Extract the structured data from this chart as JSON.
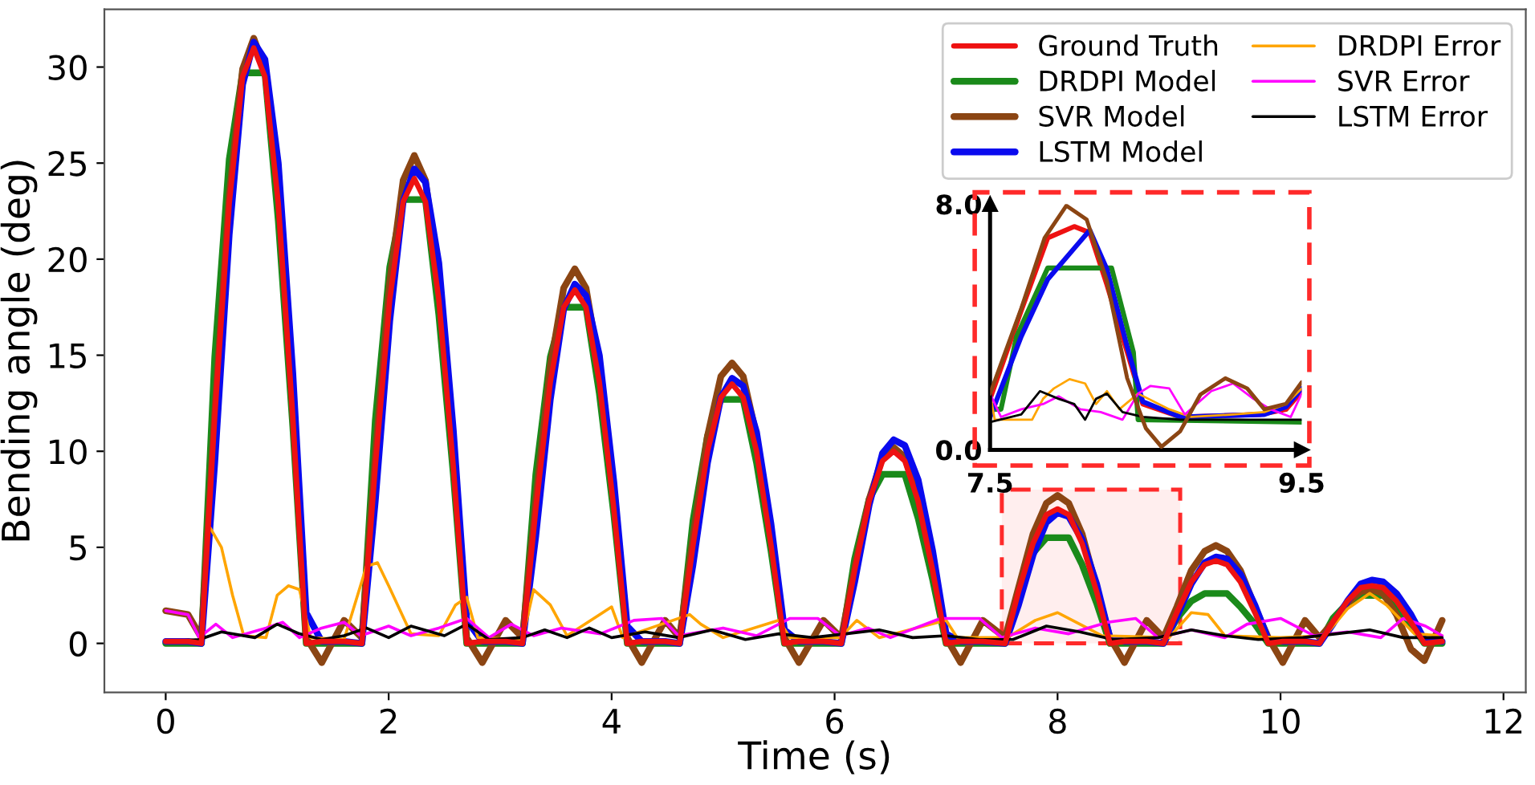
{
  "chart_data": [
    {
      "type": "line",
      "xlabel": "Time (s)",
      "ylabel": "Bending angle (deg)",
      "xlim": [
        -0.55,
        12.2
      ],
      "ylim": [
        -2.55,
        33
      ],
      "xticks": [
        0,
        2,
        4,
        6,
        8,
        10,
        12
      ],
      "yticks": [
        0,
        5,
        10,
        15,
        20,
        25,
        30
      ],
      "grid": false,
      "legend": "top right",
      "bands": [
        {
          "axis": "x",
          "from": 7.5,
          "to": 9.1,
          "color": "#ff2a2a"
        }
      ],
      "x": [
        0,
        0.2,
        0.32,
        0.44,
        0.57,
        0.69,
        0.79,
        0.89,
        1.01,
        1.14,
        1.26,
        1.4,
        1.6,
        1.76,
        1.88,
        2.01,
        2.13,
        2.23,
        2.33,
        2.45,
        2.58,
        2.7,
        2.84,
        3.05,
        3.2,
        3.32,
        3.45,
        3.57,
        3.67,
        3.77,
        3.89,
        4.02,
        4.14,
        4.27,
        4.48,
        4.61,
        4.73,
        4.86,
        4.98,
        5.08,
        5.18,
        5.3,
        5.43,
        5.55,
        5.68,
        5.9,
        6.06,
        6.18,
        6.31,
        6.43,
        6.53,
        6.63,
        6.75,
        6.88,
        7.0,
        7.13,
        7.33,
        7.53,
        7.65,
        7.78,
        7.9,
        8.0,
        8.1,
        8.22,
        8.35,
        8.47,
        8.6,
        8.8,
        8.95,
        9.07,
        9.2,
        9.32,
        9.42,
        9.52,
        9.64,
        9.77,
        9.89,
        10.02,
        10.22,
        10.35,
        10.47,
        10.6,
        10.72,
        10.82,
        10.92,
        11.04,
        11.17,
        11.29,
        11.45
      ],
      "series": [
        {
          "name": "Ground Truth",
          "color": "#ee1111",
          "values": [
            0.1,
            0.1,
            0,
            11.8,
            22.9,
            29.5,
            31,
            29.5,
            22.9,
            11.8,
            0,
            0.1,
            0.1,
            0,
            9.2,
            17.9,
            23.0,
            24.2,
            23.0,
            17.9,
            9.2,
            0,
            0.1,
            0.1,
            0,
            7.0,
            13.6,
            17.5,
            18.4,
            17.5,
            13.6,
            7.0,
            0,
            0.1,
            0.1,
            0,
            5.1,
            10.0,
            12.8,
            13.5,
            12.8,
            10.0,
            5.1,
            0,
            0.1,
            0.1,
            0,
            3.8,
            7.4,
            9.5,
            10,
            9.5,
            7.4,
            3.8,
            0,
            0.1,
            0.1,
            0,
            2.7,
            5.2,
            6.7,
            7,
            6.7,
            5.2,
            2.7,
            0,
            0.1,
            0.1,
            0,
            1.6,
            3.2,
            4.1,
            4.3,
            4.1,
            3.2,
            1.6,
            0,
            0.1,
            0.1,
            0,
            1.1,
            2.2,
            2.9,
            3.0,
            2.9,
            2.2,
            1.1,
            0,
            0.1
          ]
        },
        {
          "name": "DRDPI Model",
          "color": "#1a8a1a",
          "values": [
            0,
            0,
            0,
            14.9,
            25.2,
            29.7,
            29.7,
            29.7,
            22.0,
            11.3,
            0,
            0,
            0,
            0,
            11.6,
            19.6,
            23.1,
            23.1,
            23.1,
            17.1,
            8.8,
            0,
            0,
            0,
            0,
            8.8,
            14.9,
            17.5,
            17.5,
            17.5,
            13.0,
            6.7,
            0,
            0,
            0,
            0,
            6.4,
            10.8,
            12.7,
            12.7,
            12.7,
            9.4,
            4.8,
            0,
            0,
            0,
            0,
            4.4,
            7.5,
            8.8,
            8.8,
            8.8,
            6.5,
            3.3,
            0,
            0,
            0,
            0,
            2.8,
            4.7,
            5.5,
            5.5,
            5.5,
            4.1,
            2.1,
            0,
            0,
            0,
            0,
            1.3,
            2.2,
            2.6,
            2.6,
            2.6,
            1.9,
            1.0,
            0,
            0,
            0,
            0,
            1.3,
            2.1,
            2.5,
            2.5,
            2.5,
            1.9,
            1.0,
            0,
            0
          ]
        },
        {
          "name": "SVR Model",
          "color": "#8b4513",
          "values": [
            1.7,
            1.5,
            0.3,
            12.0,
            23.3,
            29.9,
            31.5,
            29.9,
            23.3,
            12.0,
            0.3,
            -1.0,
            1.2,
            0.3,
            9.7,
            18.8,
            24.1,
            25.4,
            24.1,
            18.8,
            9.7,
            0.3,
            -1.0,
            1.2,
            0.3,
            7.4,
            14.4,
            18.5,
            19.5,
            18.5,
            14.4,
            7.4,
            0.3,
            -1.0,
            1.2,
            0.3,
            5.5,
            10.8,
            13.9,
            14.6,
            13.9,
            10.8,
            5.5,
            0.3,
            -1.0,
            1.2,
            0.3,
            3.9,
            7.5,
            9.7,
            10.2,
            9.7,
            7.5,
            3.9,
            0.3,
            -1.0,
            1.2,
            0.3,
            2.9,
            5.7,
            7.3,
            7.7,
            7.3,
            5.7,
            2.9,
            0.3,
            -1.0,
            1.2,
            0.3,
            1.9,
            3.8,
            4.8,
            5.1,
            4.8,
            3.8,
            1.9,
            0.3,
            -1.0,
            1.2,
            0.3,
            1.1,
            2.1,
            2.7,
            2.8,
            2.6,
            1.5,
            -0.3,
            -0.9,
            1.2
          ]
        },
        {
          "name": "LSTM Model",
          "color": "#0a0aee",
          "values": [
            0.1,
            0.1,
            0,
            9.4,
            21.3,
            29.1,
            31.3,
            30.4,
            25.0,
            14.1,
            1.6,
            0.1,
            0.1,
            0,
            7.4,
            16.8,
            23.0,
            24.7,
            24.0,
            19.8,
            11.1,
            1.2,
            0.1,
            0.1,
            0,
            5.6,
            12.7,
            17.4,
            18.7,
            18.1,
            15.0,
            8.4,
            0.9,
            0.1,
            0.1,
            0,
            4.1,
            9.4,
            12.8,
            13.8,
            13.4,
            11.0,
            6.2,
            0.7,
            0.1,
            0.1,
            0,
            3.2,
            7.2,
            9.9,
            10.6,
            10.3,
            8.5,
            4.8,
            0.5,
            0.1,
            0.1,
            0,
            2.0,
            4.6,
            6.3,
            6.8,
            6.6,
            5.4,
            3.1,
            0.3,
            0.1,
            0.1,
            0,
            1.4,
            3.1,
            4.2,
            4.5,
            4.4,
            3.6,
            2.0,
            0.2,
            0.1,
            0.1,
            0,
            1.0,
            2.2,
            3.1,
            3.3,
            3.2,
            2.6,
            1.5,
            0.2,
            0.1
          ]
        },
        {
          "name": "DRDPI Error",
          "color": "#ffa500",
          "x": [
            0.4,
            0.5,
            0.6,
            0.7,
            0.9,
            1.0,
            1.1,
            1.2,
            1.3,
            1.6,
            1.8,
            1.9,
            2.0,
            2.2,
            2.45,
            2.6,
            2.7,
            2.8,
            3.2,
            3.3,
            3.45,
            3.6,
            4.0,
            4.1,
            4.7,
            4.8,
            5.0,
            5.5,
            5.6,
            6.05,
            6.2,
            6.4,
            7.0,
            7.1,
            7.55,
            7.8,
            8.0,
            8.2,
            8.4,
            9.0,
            9.2,
            9.35,
            9.5,
            10.0,
            10.4,
            10.6,
            10.8,
            10.95,
            11.2,
            11.45
          ],
          "values": [
            6.0,
            5.0,
            2.5,
            0.4,
            0.3,
            2.5,
            3.0,
            2.8,
            0.3,
            0.2,
            4.0,
            4.2,
            3.0,
            0.5,
            0.4,
            2.0,
            2.4,
            0.3,
            0.2,
            2.8,
            2.0,
            0.4,
            1.9,
            0.3,
            1.5,
            1.0,
            0.3,
            1.2,
            0.3,
            0.3,
            1.2,
            0.3,
            1.2,
            0.3,
            0.3,
            1.2,
            1.6,
            1.0,
            0.4,
            0.3,
            1.6,
            1.5,
            0.4,
            0.3,
            0.4,
            1.8,
            2.6,
            2.0,
            0.5,
            0.4
          ]
        },
        {
          "name": "SVR Error",
          "color": "#ff00ff",
          "x": [
            0,
            0.2,
            0.3,
            0.45,
            0.6,
            0.9,
            1.05,
            1.2,
            1.4,
            1.6,
            1.75,
            2.0,
            2.2,
            2.45,
            2.7,
            2.9,
            3.1,
            3.3,
            3.55,
            3.9,
            4.2,
            4.45,
            4.6,
            5.0,
            5.3,
            5.6,
            5.85,
            6.05,
            6.3,
            6.5,
            6.95,
            7.3,
            7.5,
            7.8,
            8.1,
            8.45,
            8.7,
            8.9,
            9.2,
            9.5,
            9.7,
            10.0,
            10.3,
            10.6,
            10.9,
            11.1,
            11.3,
            11.45
          ],
          "values": [
            1.7,
            1.5,
            0.3,
            1.0,
            0.3,
            0.8,
            1.1,
            0.3,
            0.8,
            1.1,
            0.4,
            0.9,
            0.4,
            0.8,
            1.3,
            0.3,
            1.0,
            0.4,
            0.8,
            0.5,
            1.2,
            1.3,
            0.4,
            0.8,
            0.4,
            1.3,
            1.3,
            0.4,
            0.8,
            0.3,
            1.3,
            1.3,
            0.3,
            0.8,
            0.5,
            1.1,
            1.3,
            0.3,
            0.7,
            0.3,
            1.0,
            1.3,
            0.4,
            0.6,
            0.3,
            1.3,
            0.9,
            0.4
          ]
        },
        {
          "name": "LSTM Error",
          "color": "#000000",
          "x": [
            0,
            0.3,
            0.5,
            0.8,
            1.0,
            1.2,
            1.4,
            1.6,
            1.8,
            2.0,
            2.2,
            2.5,
            2.7,
            2.9,
            3.2,
            3.4,
            3.6,
            3.8,
            4.0,
            4.3,
            4.6,
            4.9,
            5.2,
            5.5,
            5.8,
            6.1,
            6.4,
            6.7,
            7.0,
            7.3,
            7.6,
            7.9,
            8.2,
            8.5,
            8.9,
            9.2,
            9.5,
            9.8,
            10.2,
            10.5,
            10.8,
            11.1,
            11.45
          ],
          "values": [
            0.1,
            0.2,
            0.6,
            0.3,
            1.0,
            0.5,
            0.2,
            0.4,
            0.8,
            0.3,
            0.9,
            0.4,
            1.0,
            0.2,
            0.3,
            0.7,
            0.3,
            0.8,
            0.3,
            0.6,
            0.3,
            0.7,
            0.2,
            0.5,
            0.3,
            0.5,
            0.7,
            0.3,
            0.4,
            0.2,
            0.2,
            0.9,
            0.6,
            0.2,
            0.3,
            0.7,
            0.4,
            0.2,
            0.3,
            0.5,
            0.7,
            0.3,
            0.3
          ]
        }
      ]
    },
    {
      "type": "line",
      "xlim": [
        7.5,
        9.5
      ],
      "ylim": [
        0,
        8.0
      ],
      "xticks": [
        {
          "value": 7.5,
          "label": "7.5"
        },
        {
          "value": 9.5,
          "label": "9.5"
        }
      ],
      "yticks": [
        {
          "value": 0,
          "label": "0.0"
        },
        {
          "value": 8.0,
          "label": "8.0"
        }
      ],
      "grid": false,
      "legend": false,
      "series": [
        {
          "color": "#8b4513",
          "x": [
            7.5,
            7.7,
            7.85,
            7.99,
            8.12,
            8.25,
            8.38,
            8.5,
            8.6,
            8.72,
            8.85,
            9.01,
            9.15,
            9.26,
            9.4,
            9.5
          ],
          "values": [
            1.83,
            4.6,
            6.9,
            7.95,
            7.5,
            5.5,
            2.33,
            0.7,
            0.1,
            0.6,
            1.8,
            2.33,
            2.0,
            1.32,
            1.5,
            2.2
          ]
        },
        {
          "color": "#ee1111",
          "x": [
            7.5,
            7.7,
            7.87,
            8.04,
            8.14,
            8.25,
            8.38,
            8.48,
            8.72,
            9.23,
            9.4,
            9.5
          ],
          "values": [
            1.66,
            4.53,
            6.9,
            7.27,
            7.07,
            5.37,
            3.18,
            1.49,
            1.07,
            1.15,
            1.32,
            1.9
          ]
        },
        {
          "color": "#1a8a1a",
          "x": [
            7.5,
            7.57,
            7.67,
            7.87,
            8.28,
            8.42,
            8.45,
            9.5
          ],
          "values": [
            1.32,
            1.32,
            3.69,
            5.92,
            5.92,
            3.18,
            0.98,
            0.9
          ]
        },
        {
          "color": "#0a0aee",
          "x": [
            7.5,
            7.7,
            7.87,
            8.04,
            8.14,
            8.25,
            8.38,
            8.48,
            8.72,
            9.26,
            9.4,
            9.5
          ],
          "values": [
            1.07,
            3.69,
            5.55,
            6.56,
            7.15,
            5.88,
            3.35,
            1.57,
            1.07,
            1.15,
            1.4,
            1.99
          ]
        },
        {
          "color": "#ffa500",
          "x": [
            7.5,
            7.53,
            7.77,
            7.84,
            7.91,
            8.01,
            8.11,
            8.18,
            8.25,
            8.33,
            8.45,
            8.65,
            8.79,
            9.06,
            9.26,
            9.4,
            9.5
          ],
          "values": [
            1.83,
            0.98,
            0.98,
            1.66,
            2.0,
            2.3,
            2.16,
            1.49,
            1.91,
            1.32,
            1.83,
            1.32,
            1.07,
            1.15,
            1.23,
            1.49,
            2.0
          ]
        },
        {
          "color": "#ff00ff",
          "x": [
            7.5,
            7.57,
            7.7,
            7.84,
            7.94,
            8.08,
            8.21,
            8.35,
            8.45,
            8.53,
            8.65,
            8.75,
            8.92,
            9.06,
            9.19,
            9.3,
            9.43,
            9.5
          ],
          "values": [
            1.83,
            1.07,
            1.32,
            1.49,
            1.74,
            1.32,
            1.23,
            0.98,
            1.83,
            2.08,
            2.0,
            1.15,
            1.91,
            2.16,
            1.66,
            1.32,
            1.07,
            1.83
          ]
        },
        {
          "color": "#000000",
          "x": [
            7.5,
            7.7,
            7.82,
            7.94,
            8.04,
            8.11,
            8.18,
            8.25,
            8.35,
            8.48,
            8.72,
            9.5
          ],
          "values": [
            0.9,
            1.15,
            1.91,
            1.66,
            1.49,
            0.98,
            1.66,
            1.83,
            1.23,
            1.07,
            0.98,
            0.98
          ]
        }
      ]
    }
  ]
}
